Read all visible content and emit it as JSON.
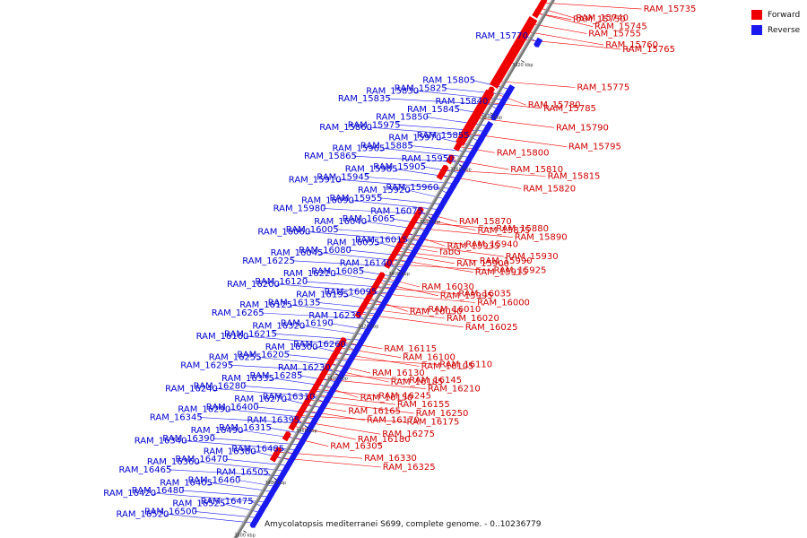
{
  "caption": "Amycolatopsis mediterranei S699, complete genome. - 0..10236779",
  "colors": {
    "forward": "#ee0000",
    "reverse": "#1a1aee",
    "backbone": "#777777"
  },
  "legend": [
    {
      "label": "Forward",
      "color": "#ee0000"
    },
    {
      "label": "Reverse",
      "color": "#1a1aee"
    }
  ],
  "ticks": [
    {
      "kbp": 3320,
      "label": "3320 kbp"
    },
    {
      "kbp": 3340,
      "label": "3340 kbp"
    },
    {
      "kbp": 3360,
      "label": "3360 kbp"
    },
    {
      "kbp": 3380,
      "label": "3380 kbp"
    },
    {
      "kbp": 3400,
      "label": "3400 kbp"
    },
    {
      "kbp": 3420,
      "label": "3420 kbp"
    },
    {
      "kbp": 3440,
      "label": "3440 kbp"
    },
    {
      "kbp": 3460,
      "label": "3460 kbp"
    },
    {
      "kbp": 3480,
      "label": "3480 kbp"
    },
    {
      "kbp": 3500,
      "label": "3500 kbp"
    }
  ],
  "forward_genes": [
    {
      "name": "RAM_15750",
      "pos": 3304
    },
    {
      "name": "RAM_15755",
      "pos": 3308
    },
    {
      "name": "RAM_15760",
      "pos": 3311
    },
    {
      "name": "RAM_15735",
      "pos": 3300
    },
    {
      "name": "RAM_15740",
      "pos": 3302
    },
    {
      "name": "RAM_15745",
      "pos": 3304
    },
    {
      "name": "RAM_15775",
      "pos": 3330
    },
    {
      "name": "RAM_15765",
      "pos": 3314
    },
    {
      "name": "RAM_15780",
      "pos": 3334
    },
    {
      "name": "RAM_15785",
      "pos": 3338
    },
    {
      "name": "RAM_15790",
      "pos": 3344
    },
    {
      "name": "RAM_15795",
      "pos": 3350
    },
    {
      "name": "RAM_15800",
      "pos": 3355
    },
    {
      "name": "RAM_15810",
      "pos": 3360
    },
    {
      "name": "RAM_15820",
      "pos": 3366
    },
    {
      "name": "RAM_15815",
      "pos": 3364
    },
    {
      "name": "RAM_15870",
      "pos": 3380
    },
    {
      "name": "RAM_15875",
      "pos": 3382
    },
    {
      "name": "RAM_15880",
      "pos": 3384
    },
    {
      "name": "RAM_15890",
      "pos": 3386
    },
    {
      "name": "RAM_15935",
      "pos": 3388
    },
    {
      "name": "RAM_15940",
      "pos": 3390
    },
    {
      "name": "RAM_15990",
      "pos": 3395
    },
    {
      "name": "RAM_15930",
      "pos": 3392
    },
    {
      "name": "fabG",
      "pos": 3393
    },
    {
      "name": "RAM_15900",
      "pos": 3396
    },
    {
      "name": "RAM_15915",
      "pos": 3398
    },
    {
      "name": "RAM_15925",
      "pos": 3400
    },
    {
      "name": "RAM_16030",
      "pos": 3405
    },
    {
      "name": "RAM_15995",
      "pos": 3407
    },
    {
      "name": "RAM_16035",
      "pos": 3409
    },
    {
      "name": "RAM_16000",
      "pos": 3411
    },
    {
      "name": "RAM_16050",
      "pos": 3413
    },
    {
      "name": "RAM_16010",
      "pos": 3415
    },
    {
      "name": "RAM_16020",
      "pos": 3417
    },
    {
      "name": "RAM_16025",
      "pos": 3419
    },
    {
      "name": "RAM_16115",
      "pos": 3430
    },
    {
      "name": "RAM_16100",
      "pos": 3432
    },
    {
      "name": "RAM_16105",
      "pos": 3434
    },
    {
      "name": "RAM_16110",
      "pos": 3436
    },
    {
      "name": "RAM_16130",
      "pos": 3438
    },
    {
      "name": "RAM_16185",
      "pos": 3440
    },
    {
      "name": "RAM_16145",
      "pos": 3442
    },
    {
      "name": "RAM_16210",
      "pos": 3444
    },
    {
      "name": "RAM_16150",
      "pos": 3446
    },
    {
      "name": "RAM_16245",
      "pos": 3448
    },
    {
      "name": "RAM_16155",
      "pos": 3450
    },
    {
      "name": "RAM_16250",
      "pos": 3452
    },
    {
      "name": "RAM_16165",
      "pos": 3454
    },
    {
      "name": "RAM_16170",
      "pos": 3456
    },
    {
      "name": "RAM_16275",
      "pos": 3460
    },
    {
      "name": "RAM_16175",
      "pos": 3458
    },
    {
      "name": "RAM_16305",
      "pos": 3466
    },
    {
      "name": "RAM_16180",
      "pos": 3462
    },
    {
      "name": "RAM_16330",
      "pos": 3472
    },
    {
      "name": "RAM_16325",
      "pos": 3474
    }
  ],
  "reverse_genes": [
    {
      "name": "RAM_15770",
      "pos": 3312
    },
    {
      "name": "RAM_15805",
      "pos": 3330
    },
    {
      "name": "RAM_15825",
      "pos": 3332
    },
    {
      "name": "RAM_15830",
      "pos": 3334
    },
    {
      "name": "RAM_15835",
      "pos": 3336
    },
    {
      "name": "RAM_15840",
      "pos": 3338
    },
    {
      "name": "RAM_15845",
      "pos": 3340
    },
    {
      "name": "RAM_15850",
      "pos": 3344
    },
    {
      "name": "RAM_15975",
      "pos": 3346
    },
    {
      "name": "RAM_15860",
      "pos": 3348
    },
    {
      "name": "RAM_15855",
      "pos": 3350
    },
    {
      "name": "RAM_15970",
      "pos": 3352
    },
    {
      "name": "RAM_15885",
      "pos": 3354
    },
    {
      "name": "RAM_15965",
      "pos": 3356
    },
    {
      "name": "RAM_15865",
      "pos": 3358
    },
    {
      "name": "RAM_15950",
      "pos": 3360
    },
    {
      "name": "RAM_15905",
      "pos": 3362
    },
    {
      "name": "RAM_15985",
      "pos": 3364
    },
    {
      "name": "RAM_15945",
      "pos": 3366
    },
    {
      "name": "RAM_15910",
      "pos": 3368
    },
    {
      "name": "RAM_15960",
      "pos": 3370
    },
    {
      "name": "RAM_15920",
      "pos": 3372
    },
    {
      "name": "RAM_15955",
      "pos": 3374
    },
    {
      "name": "RAM_16090",
      "pos": 3376
    },
    {
      "name": "RAM_15980",
      "pos": 3378
    },
    {
      "name": "RAM_16075",
      "pos": 3380
    },
    {
      "name": "RAM_16065",
      "pos": 3382
    },
    {
      "name": "RAM_16040",
      "pos": 3384
    },
    {
      "name": "RAM_16005",
      "pos": 3386
    },
    {
      "name": "RAM_16060",
      "pos": 3388
    },
    {
      "name": "RAM_16015",
      "pos": 3390
    },
    {
      "name": "RAM_16055",
      "pos": 3392
    },
    {
      "name": "RAM_16080",
      "pos": 3394
    },
    {
      "name": "RAM_16045",
      "pos": 3396
    },
    {
      "name": "RAM_16225",
      "pos": 3398
    },
    {
      "name": "RAM_16140",
      "pos": 3400
    },
    {
      "name": "RAM_16085",
      "pos": 3402
    },
    {
      "name": "RAM_16220",
      "pos": 3404
    },
    {
      "name": "RAM_16120",
      "pos": 3406
    },
    {
      "name": "RAM_16200",
      "pos": 3408
    },
    {
      "name": "RAM_16095",
      "pos": 3410
    },
    {
      "name": "RAM_16195",
      "pos": 3412
    },
    {
      "name": "RAM_16135",
      "pos": 3414
    },
    {
      "name": "RAM_16125",
      "pos": 3416
    },
    {
      "name": "RAM_16265",
      "pos": 3418
    },
    {
      "name": "RAM_16235",
      "pos": 3420
    },
    {
      "name": "RAM_16190",
      "pos": 3422
    },
    {
      "name": "RAM_16320",
      "pos": 3424
    },
    {
      "name": "RAM_16215",
      "pos": 3426
    },
    {
      "name": "RAM_16160",
      "pos": 3428
    },
    {
      "name": "RAM_16260",
      "pos": 3430
    },
    {
      "name": "RAM_16300",
      "pos": 3432
    },
    {
      "name": "RAM_16205",
      "pos": 3434
    },
    {
      "name": "RAM_16255",
      "pos": 3436
    },
    {
      "name": "RAM_16295",
      "pos": 3438
    },
    {
      "name": "RAM_16230",
      "pos": 3440
    },
    {
      "name": "RAM_16285",
      "pos": 3442
    },
    {
      "name": "RAM_16335",
      "pos": 3444
    },
    {
      "name": "RAM_16280",
      "pos": 3446
    },
    {
      "name": "RAM_16240",
      "pos": 3448
    },
    {
      "name": "RAM_16310",
      "pos": 3450
    },
    {
      "name": "RAM_16270",
      "pos": 3452
    },
    {
      "name": "RAM_16400",
      "pos": 3454
    },
    {
      "name": "RAM_16290",
      "pos": 3456
    },
    {
      "name": "RAM_16345",
      "pos": 3458
    },
    {
      "name": "RAM_16395",
      "pos": 3460
    },
    {
      "name": "RAM_16315",
      "pos": 3462
    },
    {
      "name": "RAM_16490",
      "pos": 3464
    },
    {
      "name": "RAM_16390",
      "pos": 3466
    },
    {
      "name": "RAM_16340",
      "pos": 3468
    },
    {
      "name": "RAM_16485",
      "pos": 3470
    },
    {
      "name": "RAM_16380",
      "pos": 3472
    },
    {
      "name": "RAM_16470",
      "pos": 3474
    },
    {
      "name": "RAM_16360",
      "pos": 3476
    },
    {
      "name": "RAM_16465",
      "pos": 3478
    },
    {
      "name": "RAM_16505",
      "pos": 3480
    },
    {
      "name": "RAM_16460",
      "pos": 3482
    },
    {
      "name": "RAM_16405",
      "pos": 3484
    },
    {
      "name": "RAM_16480",
      "pos": 3486
    },
    {
      "name": "RAM_16420",
      "pos": 3488
    },
    {
      "name": "RAM_16475",
      "pos": 3490
    },
    {
      "name": "RAM_16525",
      "pos": 3492
    },
    {
      "name": "RAM_16500",
      "pos": 3494
    },
    {
      "name": "RAM_16520",
      "pos": 3496
    }
  ]
}
